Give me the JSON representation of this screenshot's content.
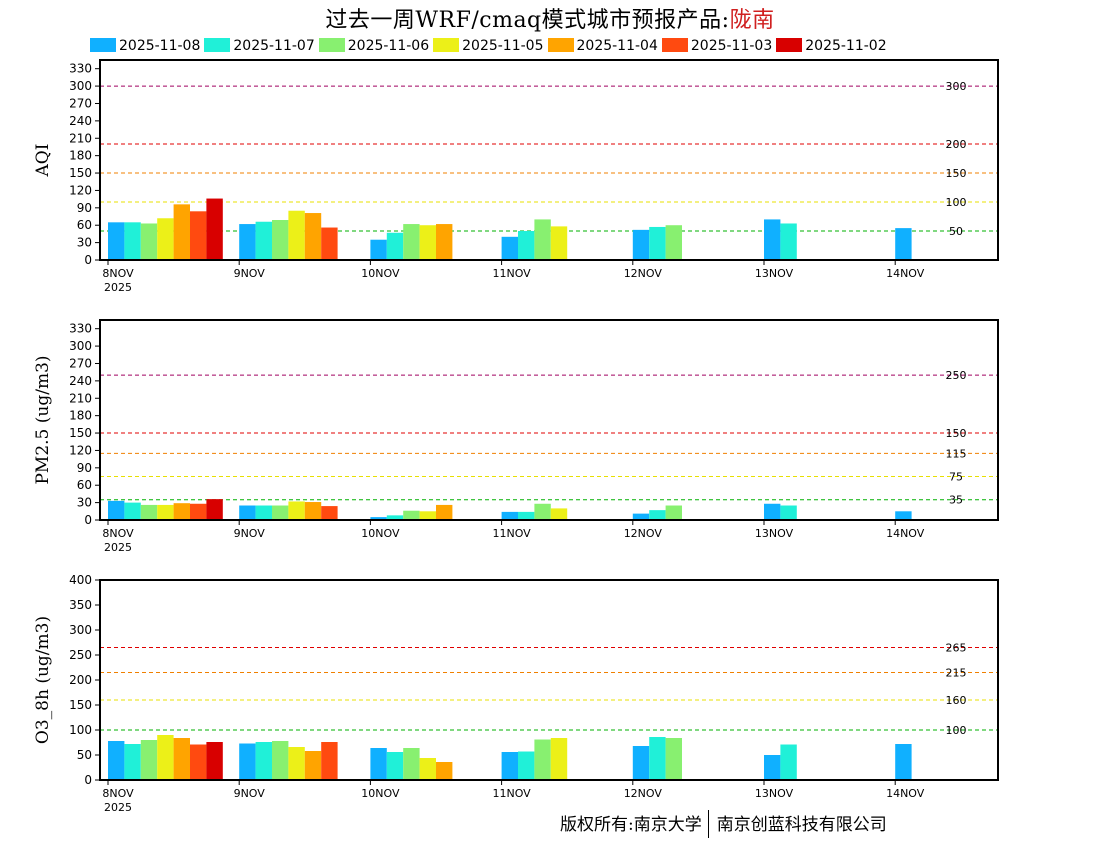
{
  "title": {
    "main": "过去一周WRF/cmaq模式城市预报产品:",
    "city": "陇南"
  },
  "legend": [
    {
      "label": "2025-11-08",
      "color": "#10b0ff"
    },
    {
      "label": "2025-11-07",
      "color": "#20f0d8"
    },
    {
      "label": "2025-11-06",
      "color": "#88f070"
    },
    {
      "label": "2025-11-05",
      "color": "#ecf018"
    },
    {
      "label": "2025-11-04",
      "color": "#ffa400"
    },
    {
      "label": "2025-11-03",
      "color": "#ff4a10"
    },
    {
      "label": "2025-11-02",
      "color": "#d80000"
    }
  ],
  "footer": {
    "left": "版权所有:南京大学",
    "right": "南京创蓝科技有限公司"
  },
  "chart_data": [
    {
      "type": "bar",
      "ylabel": "AQI",
      "ylim": [
        0,
        345
      ],
      "yticks": [
        0,
        30,
        60,
        90,
        120,
        150,
        180,
        210,
        240,
        270,
        300,
        330
      ],
      "day_labels": [
        "8NOV",
        "9NOV",
        "10NOV",
        "11NOV",
        "12NOV",
        "13NOV",
        "14NOV"
      ],
      "year_label": "2025",
      "thresholds": [
        {
          "value": 50,
          "label": "50",
          "color": "#00b000"
        },
        {
          "value": 100,
          "label": "100",
          "color": "#e8e000"
        },
        {
          "value": 150,
          "label": "150",
          "color": "#f08000"
        },
        {
          "value": 200,
          "label": "200",
          "color": "#e00000"
        },
        {
          "value": 300,
          "label": "300",
          "color": "#a00060"
        }
      ],
      "series": [
        {
          "name": "2025-11-08",
          "values": [
            65,
            62,
            35,
            40,
            52,
            70,
            55
          ]
        },
        {
          "name": "2025-11-07",
          "values": [
            65,
            66,
            47,
            50,
            57,
            63,
            null
          ]
        },
        {
          "name": "2025-11-06",
          "values": [
            63,
            69,
            62,
            70,
            60,
            null,
            null
          ]
        },
        {
          "name": "2025-11-05",
          "values": [
            72,
            85,
            60,
            58,
            null,
            null,
            null
          ]
        },
        {
          "name": "2025-11-04",
          "values": [
            96,
            81,
            62,
            null,
            null,
            null,
            null
          ]
        },
        {
          "name": "2025-11-03",
          "values": [
            84,
            56,
            null,
            null,
            null,
            null,
            null
          ]
        },
        {
          "name": "2025-11-02",
          "values": [
            106,
            null,
            null,
            null,
            null,
            null,
            null
          ]
        }
      ]
    },
    {
      "type": "bar",
      "ylabel": "PM2.5 (ug/m3)",
      "ylim": [
        0,
        345
      ],
      "yticks": [
        0,
        30,
        60,
        90,
        120,
        150,
        180,
        210,
        240,
        270,
        300,
        330
      ],
      "day_labels": [
        "8NOV",
        "9NOV",
        "10NOV",
        "11NOV",
        "12NOV",
        "13NOV",
        "14NOV"
      ],
      "year_label": "2025",
      "thresholds": [
        {
          "value": 35,
          "label": "35",
          "color": "#00b000"
        },
        {
          "value": 75,
          "label": "75",
          "color": "#e8e000"
        },
        {
          "value": 115,
          "label": "115",
          "color": "#f08000"
        },
        {
          "value": 150,
          "label": "150",
          "color": "#e00000"
        },
        {
          "value": 250,
          "label": "250",
          "color": "#a00060"
        }
      ],
      "series": [
        {
          "name": "2025-11-08",
          "values": [
            33,
            25,
            5,
            14,
            11,
            28,
            15
          ]
        },
        {
          "name": "2025-11-07",
          "values": [
            30,
            25,
            8,
            14,
            17,
            25,
            null
          ]
        },
        {
          "name": "2025-11-06",
          "values": [
            26,
            25,
            16,
            28,
            25,
            null,
            null
          ]
        },
        {
          "name": "2025-11-05",
          "values": [
            26,
            32,
            15,
            20,
            null,
            null,
            null
          ]
        },
        {
          "name": "2025-11-04",
          "values": [
            29,
            31,
            26,
            null,
            null,
            null,
            null
          ]
        },
        {
          "name": "2025-11-03",
          "values": [
            28,
            24,
            null,
            null,
            null,
            null,
            null
          ]
        },
        {
          "name": "2025-11-02",
          "values": [
            36,
            null,
            null,
            null,
            null,
            null,
            null
          ]
        }
      ]
    },
    {
      "type": "bar",
      "ylabel": "O3_8h (ug/m3)",
      "ylim": [
        0,
        400
      ],
      "yticks": [
        0,
        50,
        100,
        150,
        200,
        250,
        300,
        350,
        400
      ],
      "day_labels": [
        "8NOV",
        "9NOV",
        "10NOV",
        "11NOV",
        "12NOV",
        "13NOV",
        "14NOV"
      ],
      "year_label": "2025",
      "thresholds": [
        {
          "value": 100,
          "label": "100",
          "color": "#00b000"
        },
        {
          "value": 160,
          "label": "160",
          "color": "#e8e000"
        },
        {
          "value": 215,
          "label": "215",
          "color": "#f08000"
        },
        {
          "value": 265,
          "label": "265",
          "color": "#e00000"
        }
      ],
      "series": [
        {
          "name": "2025-11-08",
          "values": [
            78,
            73,
            64,
            56,
            68,
            50,
            72
          ]
        },
        {
          "name": "2025-11-07",
          "values": [
            72,
            76,
            56,
            57,
            86,
            71,
            null
          ]
        },
        {
          "name": "2025-11-06",
          "values": [
            80,
            78,
            64,
            81,
            84,
            null,
            null
          ]
        },
        {
          "name": "2025-11-05",
          "values": [
            90,
            66,
            44,
            84,
            null,
            null,
            null
          ]
        },
        {
          "name": "2025-11-04",
          "values": [
            84,
            58,
            36,
            null,
            null,
            null,
            null
          ]
        },
        {
          "name": "2025-11-03",
          "values": [
            71,
            76,
            null,
            null,
            null,
            null,
            null
          ]
        },
        {
          "name": "2025-11-02",
          "values": [
            76,
            null,
            null,
            null,
            null,
            null,
            null
          ]
        }
      ]
    }
  ]
}
